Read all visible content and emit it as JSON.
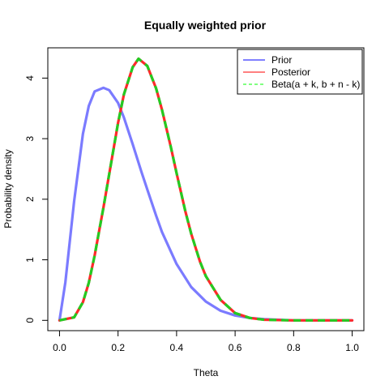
{
  "chart_data": {
    "type": "line",
    "title": "Equally weighted prior",
    "xlabel": "Theta",
    "ylabel": "Probability density",
    "xlim": [
      -0.04,
      1.04
    ],
    "ylim": [
      -0.17,
      4.5
    ],
    "xticks": [
      0.0,
      0.2,
      0.4,
      0.6,
      0.8,
      1.0
    ],
    "xtick_labels": [
      "0.0",
      "0.2",
      "0.4",
      "0.6",
      "0.8",
      "1.0"
    ],
    "yticks": [
      0,
      1,
      2,
      3,
      4
    ],
    "ytick_labels": [
      "0",
      "1",
      "2",
      "3",
      "4"
    ],
    "grid": false,
    "legend_position": "top-right",
    "series": [
      {
        "name": "Prior",
        "legend_color": "#0000ff",
        "color": "#7b7bff",
        "dash": "solid",
        "x": [
          0.0,
          0.02,
          0.05,
          0.08,
          0.1,
          0.12,
          0.15,
          0.17,
          0.2,
          0.22,
          0.25,
          0.28,
          0.3,
          0.33,
          0.35,
          0.4,
          0.45,
          0.5,
          0.55,
          0.6,
          0.65,
          0.7,
          0.75,
          0.8,
          0.85,
          0.9,
          0.95,
          1.0
        ],
        "y": [
          0.0,
          0.63,
          1.97,
          3.08,
          3.54,
          3.78,
          3.84,
          3.8,
          3.59,
          3.35,
          2.91,
          2.45,
          2.16,
          1.73,
          1.46,
          0.93,
          0.55,
          0.31,
          0.16,
          0.08,
          0.04,
          0.02,
          0.01,
          0.0,
          0.0,
          0.0,
          0.0,
          0.0
        ]
      },
      {
        "name": "Posterior",
        "legend_color": "#ff0000",
        "color": "#ff2a2a",
        "dash": "solid",
        "x": [
          0.0,
          0.05,
          0.08,
          0.1,
          0.12,
          0.15,
          0.18,
          0.2,
          0.22,
          0.25,
          0.27,
          0.3,
          0.33,
          0.35,
          0.38,
          0.4,
          0.43,
          0.45,
          0.48,
          0.5,
          0.55,
          0.6,
          0.65,
          0.7,
          0.8,
          0.9,
          1.0
        ],
        "y": [
          0.0,
          0.05,
          0.3,
          0.62,
          1.07,
          1.86,
          2.7,
          3.26,
          3.73,
          4.18,
          4.32,
          4.2,
          3.83,
          3.48,
          2.87,
          2.43,
          1.8,
          1.43,
          0.97,
          0.73,
          0.34,
          0.12,
          0.04,
          0.01,
          0.0,
          0.0,
          0.0
        ]
      },
      {
        "name": "Beta(a + k, b + n - k)",
        "legend_color": "#00ff00",
        "color": "#22cc22",
        "dash": "dashed",
        "x": [
          0.0,
          0.05,
          0.08,
          0.1,
          0.12,
          0.15,
          0.18,
          0.2,
          0.22,
          0.25,
          0.27,
          0.3,
          0.33,
          0.35,
          0.38,
          0.4,
          0.43,
          0.45,
          0.48,
          0.5,
          0.55,
          0.6,
          0.65,
          0.7,
          0.8,
          0.9,
          1.0
        ],
        "y": [
          0.0,
          0.05,
          0.3,
          0.62,
          1.07,
          1.86,
          2.7,
          3.26,
          3.73,
          4.18,
          4.32,
          4.2,
          3.83,
          3.48,
          2.87,
          2.43,
          1.8,
          1.43,
          0.97,
          0.73,
          0.34,
          0.12,
          0.04,
          0.01,
          0.0,
          0.0,
          0.0
        ]
      }
    ]
  }
}
